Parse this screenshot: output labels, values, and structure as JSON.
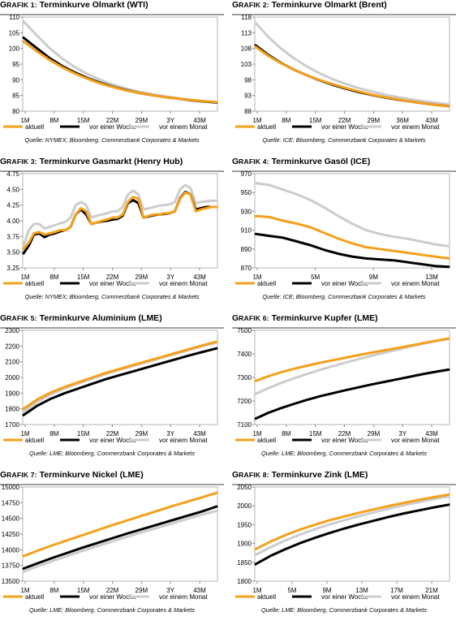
{
  "chart_data": [
    {
      "type": "line",
      "title_prefix": "G",
      "title_prefix_small": "RAFIK 1:",
      "title": "Terminkurve Olmarkt (WTI)",
      "source": "Quelle: NYMEX; Bloomberg, Commerzbank Corporates & Markets",
      "x_labels": [
        "1M",
        "8M",
        "15M",
        "22M",
        "29M",
        "3Y",
        "43M"
      ],
      "y_ticks": [
        80,
        85,
        90,
        95,
        100,
        105,
        110
      ],
      "ylim": [
        80,
        110
      ],
      "colors": {
        "aktuell": "#f5a01a",
        "vor einer Woche": "#000000",
        "vor einem Monat": "#cccccc"
      },
      "series": [
        {
          "name": "aktuell",
          "values": [
            102.2,
            99.2,
            96.4,
            94.0,
            92.0,
            90.3,
            88.8,
            87.6,
            86.6,
            85.8,
            85.1,
            84.5,
            84.0,
            83.6,
            83.2,
            82.9
          ]
        },
        {
          "name": "vor einer Woche",
          "values": [
            103.4,
            100.2,
            97.0,
            94.4,
            92.3,
            90.5,
            89.0,
            87.7,
            86.7,
            85.8,
            85.1,
            84.5,
            84.0,
            83.5,
            83.1,
            82.8
          ]
        },
        {
          "name": "vor einem Monat",
          "values": [
            108.6,
            104.3,
            100.2,
            96.8,
            94.0,
            91.8,
            89.9,
            88.4,
            87.2,
            86.2,
            85.4,
            84.7,
            84.1,
            83.6,
            83.2,
            82.8
          ]
        }
      ]
    },
    {
      "type": "line",
      "title_prefix": "G",
      "title_prefix_small": "RAFIK 2:",
      "title": "Terminkurve Olmarkt (Brent)",
      "source": "Quelle: ICE; Bloomberg, Commerzbank Corporates & Markets",
      "x_labels": [
        "1M",
        "8M",
        "15M",
        "22M",
        "29M",
        "36M",
        "43M"
      ],
      "y_ticks": [
        88,
        93,
        98,
        103,
        108,
        113,
        118
      ],
      "ylim": [
        88,
        118
      ],
      "colors": {
        "aktuell": "#f5a01a",
        "vor einer Woche": "#000000",
        "vor einem Monat": "#cccccc"
      },
      "series": [
        {
          "name": "aktuell",
          "values": [
            108.5,
            105.6,
            103.2,
            101.2,
            99.4,
            97.9,
            96.6,
            95.4,
            94.3,
            93.3,
            92.5,
            91.8,
            91.1,
            90.5,
            90.0,
            89.6
          ]
        },
        {
          "name": "vor einer Woche",
          "values": [
            109.0,
            105.9,
            103.3,
            101.2,
            99.4,
            97.8,
            96.4,
            95.2,
            94.1,
            93.2,
            92.4,
            91.7,
            91.1,
            90.5,
            90.0,
            89.6
          ]
        },
        {
          "name": "vor einem Monat",
          "values": [
            116.2,
            111.6,
            107.9,
            104.8,
            102.2,
            100.0,
            98.2,
            96.7,
            95.4,
            94.3,
            93.3,
            92.5,
            91.8,
            91.2,
            90.7,
            90.2
          ]
        }
      ]
    },
    {
      "type": "line",
      "title_prefix": "G",
      "title_prefix_small": "RAFIK 3:",
      "title": "Terminkurve Gasmarkt (Henry Hub)",
      "source": "Quelle: NYMEX; Bloomberg, Commerzbank Corporates & Markets",
      "x_labels": [
        "1M",
        "8M",
        "15M",
        "22M",
        "29M",
        "3Y",
        "43M"
      ],
      "y_ticks": [
        3.25,
        3.5,
        3.75,
        4.0,
        4.25,
        4.5,
        4.75
      ],
      "ylim": [
        3.25,
        4.75
      ],
      "colors": {
        "aktuell": "#f5a01a",
        "vor einer Woche": "#000000",
        "vor einem Monat": "#cccccc"
      },
      "series": [
        {
          "name": "aktuell",
          "values": [
            3.55,
            3.65,
            3.8,
            3.82,
            3.78,
            3.8,
            3.82,
            3.85,
            3.85,
            3.9,
            4.1,
            4.2,
            4.15,
            3.95,
            3.97,
            4.0,
            4.02,
            4.05,
            4.05,
            4.1,
            4.3,
            4.38,
            4.35,
            4.05,
            4.08,
            4.1,
            4.1,
            4.12,
            4.12,
            4.15,
            4.35,
            4.45,
            4.42,
            4.15,
            4.18,
            4.2,
            4.22,
            4.22
          ]
        },
        {
          "name": "vor einer Woche",
          "values": [
            3.48,
            3.6,
            3.78,
            3.8,
            3.74,
            3.78,
            3.8,
            3.83,
            3.85,
            3.9,
            4.1,
            4.18,
            4.1,
            3.95,
            3.97,
            3.99,
            4.0,
            4.02,
            4.03,
            4.08,
            4.28,
            4.33,
            4.28,
            4.05,
            4.07,
            4.09,
            4.1,
            4.11,
            4.12,
            4.15,
            4.36,
            4.46,
            4.42,
            4.18,
            4.2,
            4.22,
            4.22,
            4.22
          ]
        },
        {
          "name": "vor einem Monat",
          "values": [
            3.6,
            3.85,
            3.95,
            3.95,
            3.88,
            3.9,
            3.93,
            3.96,
            3.98,
            4.05,
            4.25,
            4.3,
            4.25,
            4.05,
            4.08,
            4.1,
            4.12,
            4.15,
            4.15,
            4.22,
            4.42,
            4.48,
            4.42,
            4.18,
            4.2,
            4.22,
            4.24,
            4.25,
            4.26,
            4.3,
            4.5,
            4.57,
            4.52,
            4.28,
            4.3,
            4.31,
            4.32,
            4.32
          ]
        }
      ]
    },
    {
      "type": "line",
      "title_prefix": "G",
      "title_prefix_small": "RAFIK 4:",
      "title": "Terminkurve Gasöl (ICE)",
      "source": "Quelle: ICE; Bloomberg, Commerzbank Corporates & Markets",
      "x_labels": [
        "1M",
        "5M",
        "9M",
        "13M"
      ],
      "y_ticks": [
        870,
        890,
        910,
        930,
        950,
        970
      ],
      "ylim": [
        870,
        970
      ],
      "colors": {
        "aktuell": "#f5a01a",
        "vor einer Woche": "#000000",
        "vor einem Monat": "#cccccc"
      },
      "series": [
        {
          "name": "aktuell",
          "values": [
            925,
            924,
            920,
            917,
            913,
            907,
            901,
            896,
            892,
            890,
            888,
            886,
            884,
            882,
            880
          ]
        },
        {
          "name": "vor einer Woche",
          "values": [
            906,
            904,
            902,
            898,
            894,
            889,
            885,
            882,
            880,
            879,
            878,
            876,
            874,
            872,
            871
          ]
        },
        {
          "name": "vor einem Monat",
          "values": [
            960,
            958,
            953,
            948,
            942,
            934,
            925,
            917,
            910,
            906,
            903,
            901,
            898,
            895,
            893
          ]
        }
      ]
    },
    {
      "type": "line",
      "title_prefix": "G",
      "title_prefix_small": "RAFIK 5:",
      "title": "Terminkurve Aluminium (LME)",
      "source": "Quelle: LME; Bloomberg, Commerzbank Corporates & Markets",
      "x_labels": [
        "1M",
        "8M",
        "15M",
        "22M",
        "29M",
        "3Y",
        "43M"
      ],
      "y_ticks": [
        1700,
        1800,
        1900,
        2000,
        2100,
        2200,
        2300
      ],
      "ylim": [
        1700,
        2300
      ],
      "colors": {
        "aktuell": "#f5a01a",
        "vor einer Woche": "#000000",
        "vor einem Monat": "#cccccc"
      },
      "series": [
        {
          "name": "aktuell",
          "values": [
            1800,
            1860,
            1905,
            1940,
            1970,
            2000,
            2030,
            2055,
            2080,
            2105,
            2130,
            2155,
            2180,
            2205,
            2228
          ]
        },
        {
          "name": "vor einer Woche",
          "values": [
            1760,
            1820,
            1865,
            1900,
            1930,
            1960,
            1990,
            2015,
            2040,
            2065,
            2090,
            2115,
            2140,
            2163,
            2185
          ]
        },
        {
          "name": "vor einem Monat",
          "values": [
            1780,
            1845,
            1893,
            1930,
            1962,
            1992,
            2022,
            2050,
            2075,
            2100,
            2125,
            2150,
            2175,
            2200,
            2222
          ]
        }
      ]
    },
    {
      "type": "line",
      "title_prefix": "G",
      "title_prefix_small": "RAFIK 6:",
      "title": "Terminkurve Kupfer (LME)",
      "source": "Quelle: LME; Bloomberg, Commerzbank Corporates & Markets",
      "x_labels": [
        "1M",
        "8M",
        "15M",
        "22M",
        "29M",
        "3Y",
        "43M"
      ],
      "y_ticks": [
        7100,
        7200,
        7300,
        7400,
        7500
      ],
      "ylim": [
        7100,
        7500
      ],
      "colors": {
        "aktuell": "#f5a01a",
        "vor einer Woche": "#000000",
        "vor einem Monat": "#cccccc"
      },
      "series": [
        {
          "name": "aktuell",
          "values": [
            7285,
            7305,
            7322,
            7337,
            7350,
            7362,
            7373,
            7384,
            7395,
            7405,
            7415,
            7425,
            7435,
            7446,
            7456,
            7465
          ]
        },
        {
          "name": "vor einer Woche",
          "values": [
            7125,
            7150,
            7170,
            7188,
            7205,
            7220,
            7233,
            7246,
            7258,
            7270,
            7281,
            7292,
            7303,
            7314,
            7324,
            7333
          ]
        },
        {
          "name": "vor einem Monat",
          "values": [
            7230,
            7255,
            7277,
            7297,
            7315,
            7332,
            7348,
            7363,
            7378,
            7392,
            7405,
            7418,
            7431,
            7443,
            7454,
            7463
          ]
        }
      ]
    },
    {
      "type": "line",
      "title_prefix": "G",
      "title_prefix_small": "RAFIK 7:",
      "title": "Terminkurve Nickel (LME)",
      "source": "Quelle: LME; Bloomberg, Commerzbank Corporates & Markets",
      "x_labels": [
        "1M",
        "8M",
        "15M",
        "22M",
        "29M",
        "3Y",
        "43M"
      ],
      "y_ticks": [
        13500,
        13750,
        14000,
        14250,
        14500,
        14750,
        15000
      ],
      "ylim": [
        13500,
        15000
      ],
      "colors": {
        "aktuell": "#f5a01a",
        "vor einer Woche": "#000000",
        "vor einem Monat": "#cccccc"
      },
      "series": [
        {
          "name": "aktuell",
          "values": [
            13900,
            13990,
            14075,
            14155,
            14235,
            14315,
            14395,
            14470,
            14545,
            14620,
            14695,
            14765,
            14835,
            14905
          ]
        },
        {
          "name": "vor einer Woche",
          "values": [
            13700,
            13790,
            13875,
            13955,
            14035,
            14110,
            14185,
            14260,
            14330,
            14400,
            14470,
            14540,
            14610,
            14690
          ]
        },
        {
          "name": "vor einem Monat",
          "values": [
            13650,
            13740,
            13825,
            13905,
            13985,
            14060,
            14135,
            14210,
            14280,
            14350,
            14420,
            14490,
            14560,
            14620
          ]
        }
      ]
    },
    {
      "type": "line",
      "title_prefix": "G",
      "title_prefix_small": "RAFIK 8:",
      "title": "Terminkurve Zink (LME)",
      "source": "Quelle: LME; Bloomberg, Commerzbank Corporates & Markets",
      "x_labels": [
        "1M",
        "5M",
        "9M",
        "13M",
        "17M",
        "21M"
      ],
      "y_ticks": [
        1800,
        1850,
        1900,
        1950,
        2000,
        2050
      ],
      "ylim": [
        1800,
        2050
      ],
      "colors": {
        "aktuell": "#f5a01a",
        "vor einer Woche": "#000000",
        "vor einem Monat": "#cccccc"
      },
      "series": [
        {
          "name": "aktuell",
          "values": [
            1885,
            1905,
            1922,
            1937,
            1950,
            1962,
            1972,
            1982,
            1991,
            2000,
            2008,
            2016,
            2023,
            2030
          ]
        },
        {
          "name": "vor einer Woche",
          "values": [
            1845,
            1867,
            1885,
            1901,
            1915,
            1928,
            1940,
            1951,
            1961,
            1971,
            1980,
            1988,
            1996,
            2003
          ]
        },
        {
          "name": "vor einem Monat",
          "values": [
            1870,
            1890,
            1908,
            1924,
            1938,
            1951,
            1962,
            1973,
            1983,
            1993,
            2002,
            2010,
            2018,
            2025
          ]
        }
      ]
    }
  ]
}
